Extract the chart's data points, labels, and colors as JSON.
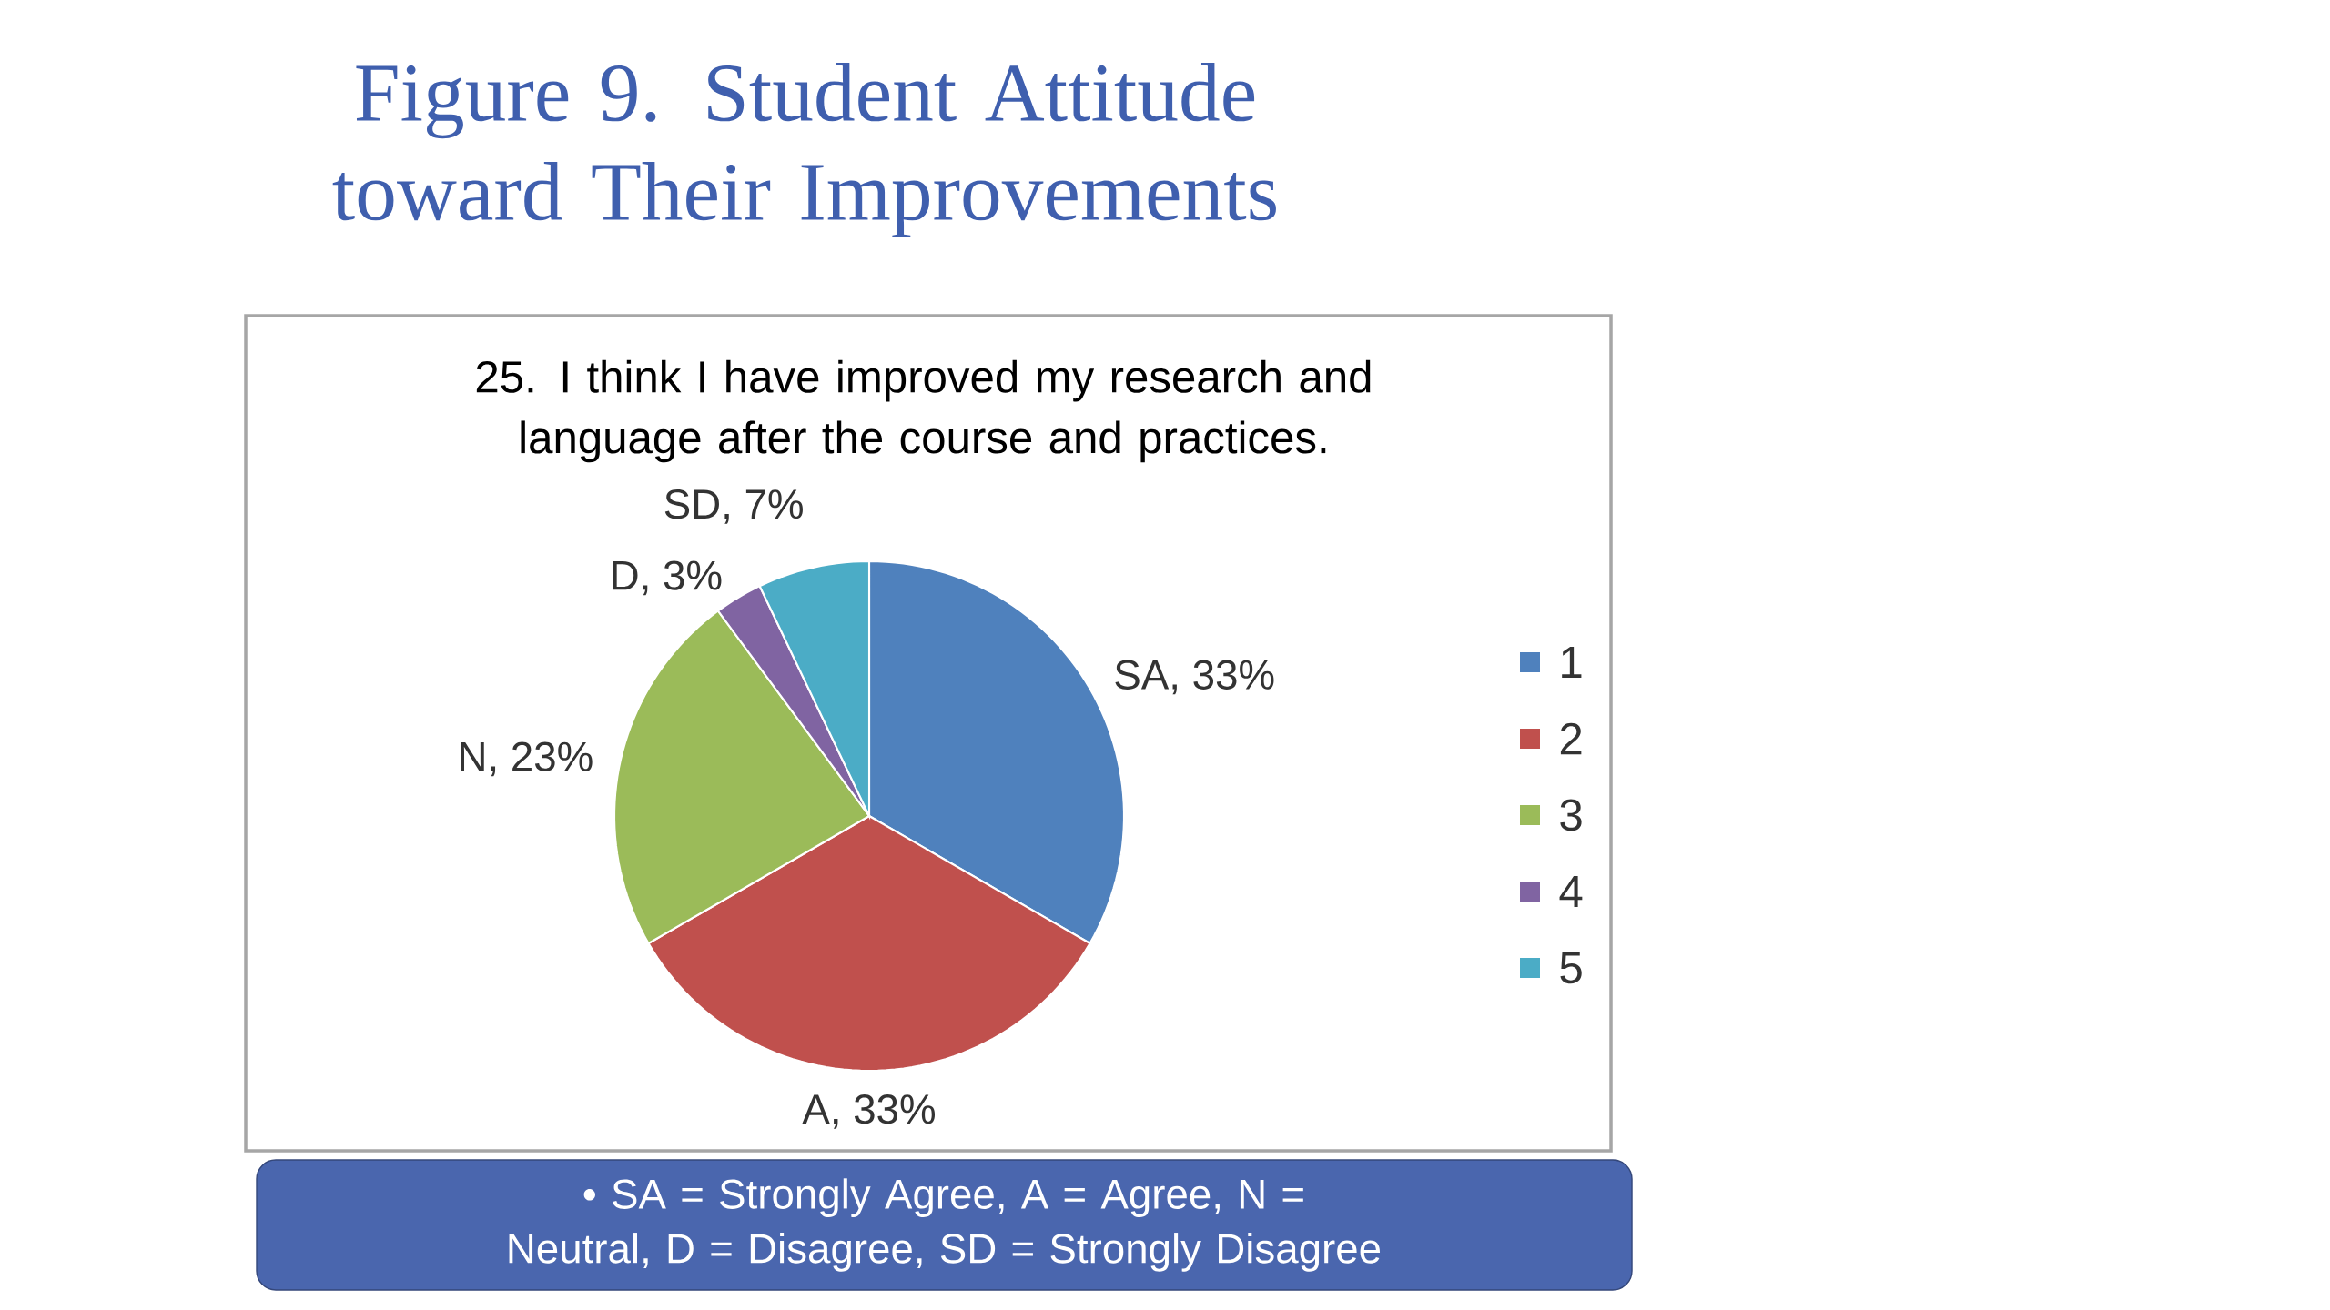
{
  "chart_data": {
    "type": "pie",
    "title": "Figure 9. Student Attitude toward Their Improvements",
    "subtitle": "25. I think I have improved my research and language after the course and practices.",
    "categories": [
      "1",
      "2",
      "3",
      "4",
      "5"
    ],
    "values": [
      33,
      33,
      23,
      3,
      7
    ],
    "colors": [
      "#4f81bd",
      "#c0504d",
      "#9bbb59",
      "#8064a2",
      "#4bacc6"
    ],
    "value_labels": [
      "SA, 33%",
      "A, 33%",
      "N, 23%",
      "D, 3%",
      "SD, 7%"
    ],
    "legend": "right",
    "annotations": [
      "• SA = Strongly Agree, A = Agree, N = Neutral, D = Disagree, SD = Strongly Disagree"
    ]
  }
}
